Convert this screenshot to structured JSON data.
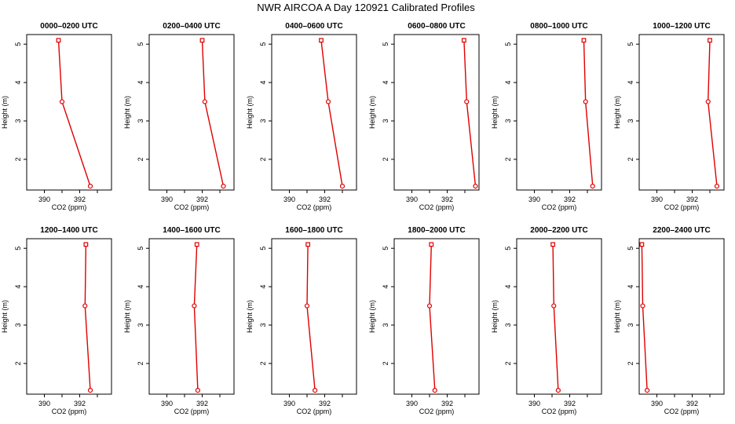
{
  "title": "NWR AIRCOA A  Day 120921  Calibrated Profiles",
  "chart_data": {
    "type": "line",
    "xlabel": "CO2 (ppm)",
    "ylabel": "Height (m)",
    "xlim": [
      389,
      393.8
    ],
    "ylim": [
      1.2,
      5.25
    ],
    "xticks": [
      390,
      391,
      392,
      393
    ],
    "xtick_labels": [
      "390",
      "",
      "392",
      ""
    ],
    "yticks": [
      2,
      3,
      4,
      5
    ],
    "ytick_labels": [
      "2",
      "3",
      "4",
      "5"
    ],
    "heights": [
      1.3,
      3.5,
      5.1
    ],
    "line_color": "#e00000",
    "panels": [
      {
        "title": "0000–0200 UTC",
        "co2": [
          392.6,
          391.0,
          390.8
        ]
      },
      {
        "title": "0200–0400 UTC",
        "co2": [
          393.2,
          392.15,
          392.0
        ]
      },
      {
        "title": "0400–0600 UTC",
        "co2": [
          393.0,
          392.2,
          391.8
        ]
      },
      {
        "title": "0600–0800 UTC",
        "co2": [
          393.6,
          393.1,
          392.95
        ]
      },
      {
        "title": "0800–1000 UTC",
        "co2": [
          393.3,
          392.9,
          392.8
        ]
      },
      {
        "title": "1000–1200 UTC",
        "co2": [
          393.4,
          392.9,
          393.0
        ]
      },
      {
        "title": "1200–1400 UTC",
        "co2": [
          392.6,
          392.3,
          392.35
        ]
      },
      {
        "title": "1400–1600 UTC",
        "co2": [
          391.75,
          391.55,
          391.7
        ]
      },
      {
        "title": "1600–1800 UTC",
        "co2": [
          391.45,
          391.0,
          391.05
        ]
      },
      {
        "title": "1800–2000 UTC",
        "co2": [
          391.3,
          391.0,
          391.1
        ]
      },
      {
        "title": "2000–2200 UTC",
        "co2": [
          391.35,
          391.1,
          391.05
        ]
      },
      {
        "title": "2200–2400 UTC",
        "co2": [
          389.45,
          389.2,
          389.15
        ]
      }
    ]
  }
}
